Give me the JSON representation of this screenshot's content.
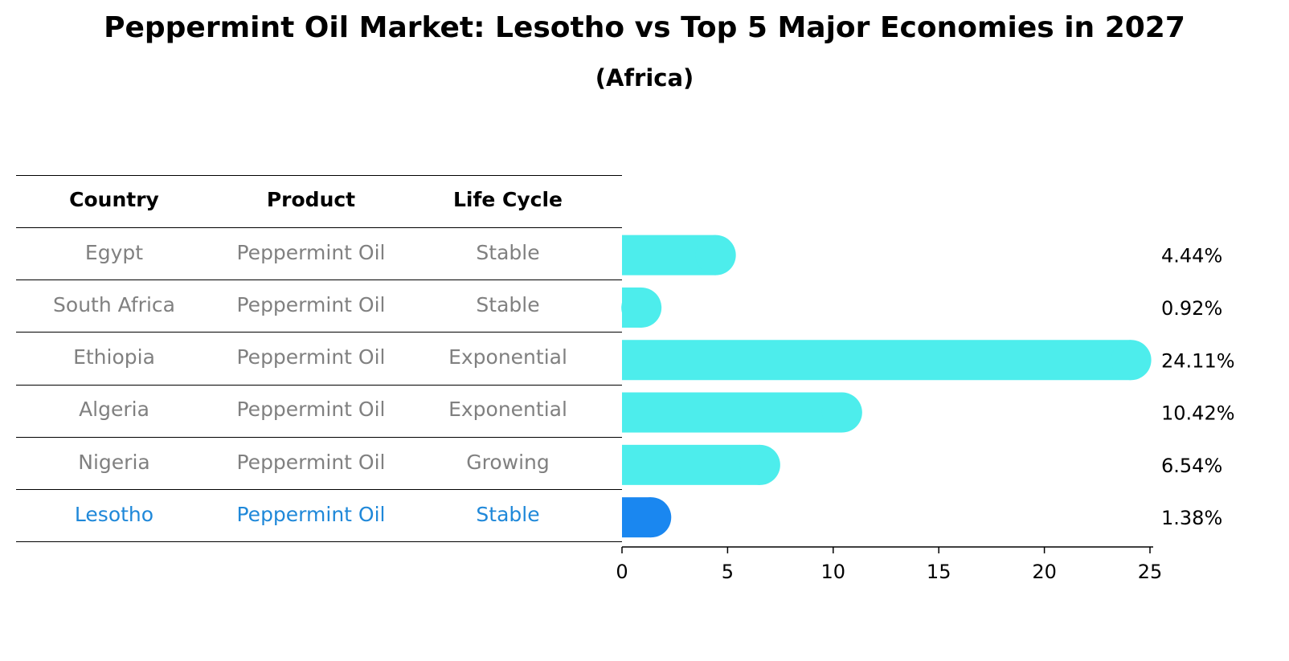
{
  "title": "Peppermint Oil Market: Lesotho vs Top 5 Major Economies in 2027",
  "subtitle": "(Africa)",
  "table": {
    "headers": [
      "Country",
      "Product",
      "Life Cycle"
    ],
    "rows": [
      {
        "country": "Egypt",
        "product": "Peppermint Oil",
        "life_cycle": "Stable"
      },
      {
        "country": "South Africa",
        "product": "Peppermint Oil",
        "life_cycle": "Stable"
      },
      {
        "country": "Ethiopia",
        "product": "Peppermint Oil",
        "life_cycle": "Exponential"
      },
      {
        "country": "Algeria",
        "product": "Peppermint Oil",
        "life_cycle": "Exponential"
      },
      {
        "country": "Nigeria",
        "product": "Peppermint Oil",
        "life_cycle": "Growing"
      },
      {
        "country": "Lesotho",
        "product": "Peppermint Oil",
        "life_cycle": "Stable"
      }
    ],
    "highlight_row": 5,
    "colors": {
      "text": "#808080",
      "highlight": "#1f88d9",
      "header": "#000000"
    }
  },
  "chart_data": {
    "type": "bar",
    "orientation": "horizontal",
    "categories": [
      "Egypt",
      "South Africa",
      "Ethiopia",
      "Algeria",
      "Nigeria",
      "Lesotho"
    ],
    "values": [
      4.44,
      0.92,
      24.11,
      10.42,
      6.54,
      1.38
    ],
    "value_labels": [
      "4.44%",
      "0.92%",
      "24.11%",
      "10.42%",
      "6.54%",
      "1.38%"
    ],
    "xlim": [
      0,
      25
    ],
    "xticks": [
      "0",
      "5",
      "10",
      "15",
      "20",
      "25"
    ],
    "grid": false,
    "colors": {
      "bar": "#4dedec",
      "highlight": "#1a87f0"
    }
  }
}
